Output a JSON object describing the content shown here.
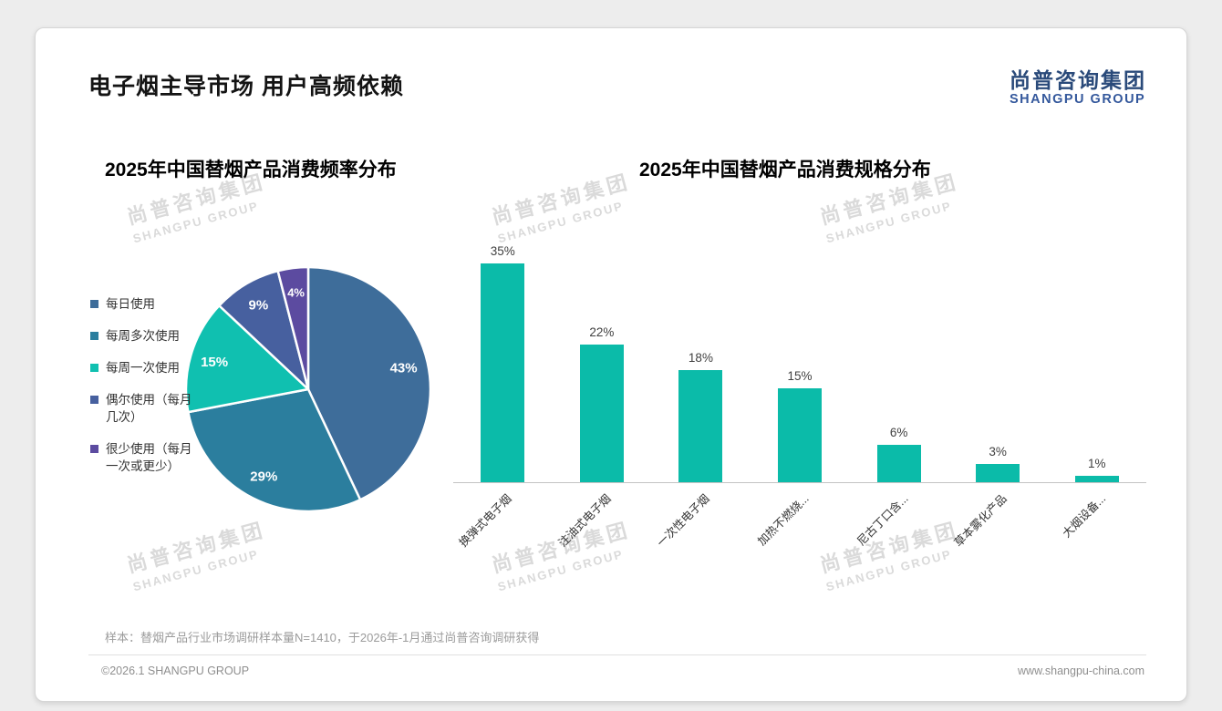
{
  "page": {
    "title": "电子烟主导市场 用户高频依赖",
    "logo": {
      "cn": "尚普咨询集团",
      "en": "SHANGPU GROUP",
      "cn_color": "#2A4A7A",
      "en_color": "#34589C"
    },
    "watermark": {
      "cn": "尚普咨询集团",
      "en": "SHANGPU GROUP",
      "color": "#dadada"
    },
    "footer": {
      "note": "样本：替烟产品行业市场调研样本量N=1410，于2026年-1月通过尚普咨询调研获得",
      "copyright": "©2026.1 SHANGPU GROUP",
      "website": "www.shangpu-china.com"
    }
  },
  "chart_data": [
    {
      "type": "pie",
      "title": "2025年中国替烟产品消费频率分布",
      "labels": [
        "每日使用",
        "每周多次使用",
        "每周一次使用",
        "偶尔使用（每月几次）",
        "很少使用（每月一次或更少）"
      ],
      "values": [
        43,
        29,
        15,
        9,
        4
      ],
      "data_labels": [
        "43%",
        "29%",
        "15%",
        "9%",
        "4%"
      ],
      "colors": [
        "#3E6D9A",
        "#2B7E9E",
        "#10C0B0",
        "#47609F",
        "#5C4BA0"
      ],
      "legend_position": "left",
      "start_angle_deg": -90,
      "direction": "clockwise"
    },
    {
      "type": "bar",
      "title": "2025年中国替烟产品消费规格分布",
      "categories": [
        "换弹式电子烟",
        "注油式电子烟",
        "一次性电子烟",
        "加热不燃烧...",
        "尼古丁口含...",
        "草本雾化产品",
        "大烟设备..."
      ],
      "values": [
        35,
        22,
        18,
        15,
        6,
        3,
        1
      ],
      "data_labels": [
        "35%",
        "22%",
        "18%",
        "15%",
        "6%",
        "3%",
        "1%"
      ],
      "bar_color": "#0BBBA9",
      "ylim": [
        0,
        35
      ],
      "value_suffix": "%",
      "grid": false,
      "legend_position": "none"
    }
  ]
}
